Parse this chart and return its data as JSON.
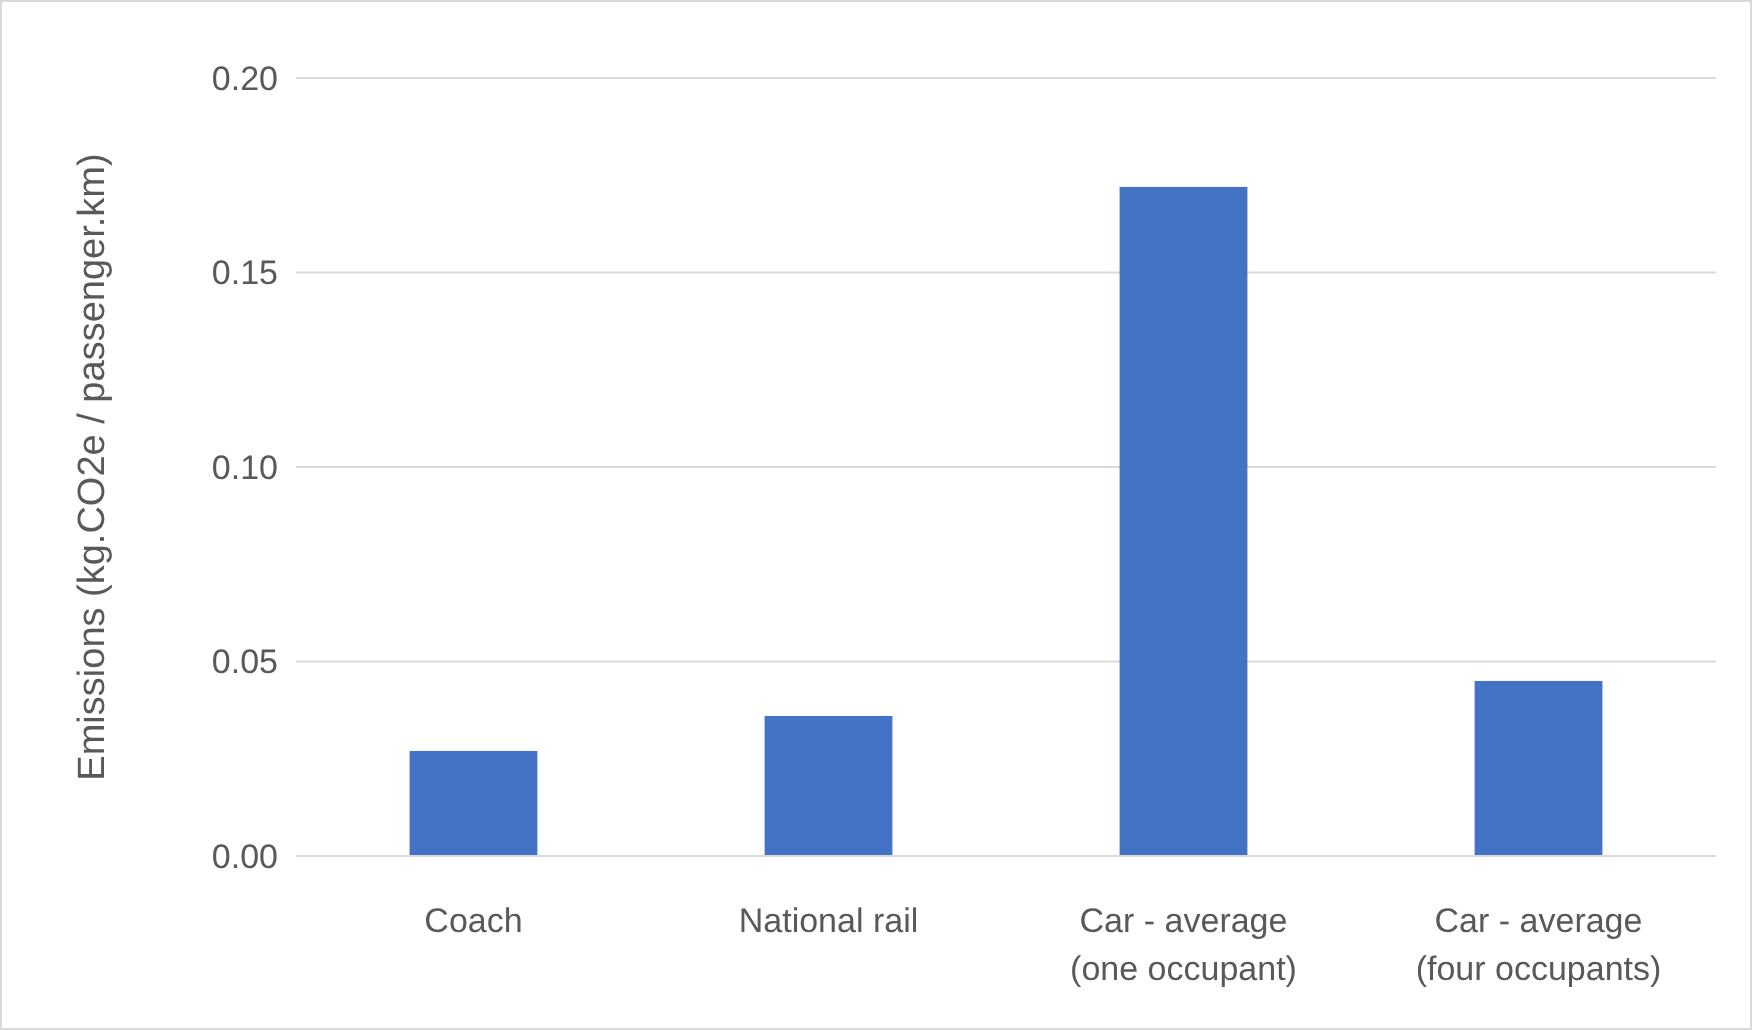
{
  "chart_data": {
    "type": "bar",
    "ylabel": "Emissions (kg.CO2e / passenger.km)",
    "categories": [
      "Coach",
      "National rail",
      "Car - average\n(one occupant)",
      "Car - average\n(four occupants)"
    ],
    "values": [
      0.027,
      0.036,
      0.172,
      0.045
    ],
    "color": "#4472c4",
    "ylim": [
      0,
      0.2
    ],
    "yticks": [
      {
        "value": 0,
        "label": "0.00"
      },
      {
        "value": 0.05,
        "label": "0.05"
      },
      {
        "value": 0.1,
        "label": "0.10"
      },
      {
        "value": 0.15,
        "label": "0.15"
      },
      {
        "value": 0.2,
        "label": "0.20"
      }
    ],
    "grid": "y"
  }
}
